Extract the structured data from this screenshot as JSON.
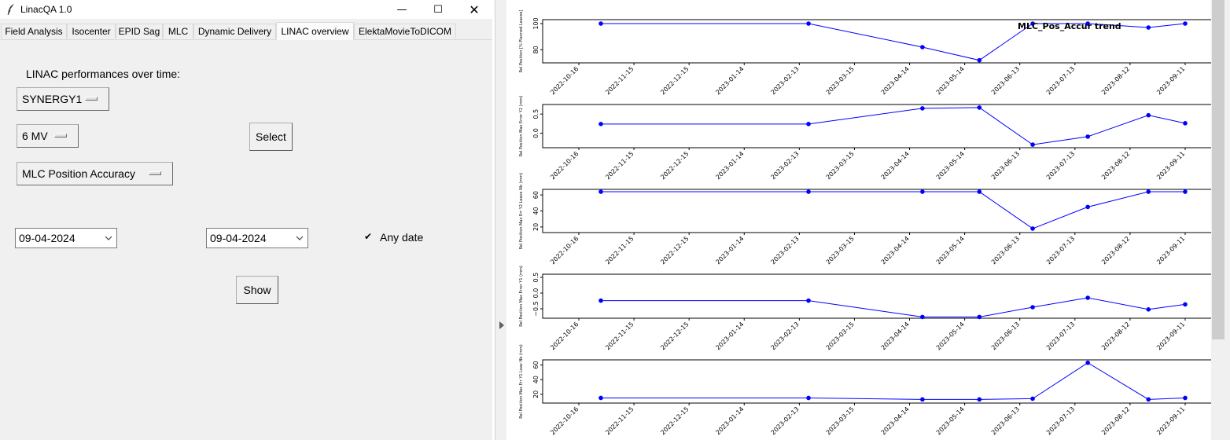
{
  "window": {
    "title": "LinacQA 1.0",
    "controls": {
      "minimize": "—",
      "maximize": "☐",
      "close": "✕"
    }
  },
  "tabs": [
    {
      "label": "Field Analysis"
    },
    {
      "label": "Isocenter"
    },
    {
      "label": "EPID Sag"
    },
    {
      "label": "MLC"
    },
    {
      "label": "Dynamic Delivery"
    },
    {
      "label": "LINAC overview"
    },
    {
      "label": "ElektaMovieToDICOM"
    }
  ],
  "form": {
    "heading": "LINAC performances over time:",
    "linac_value": "SYNERGY1",
    "energy_value": "6 MV",
    "test_value": "MLC Position Accuracy",
    "select_label": "Select",
    "start_date": "09-04-2024",
    "end_date": "09-04-2024",
    "any_date_label": "Any date",
    "any_date_checked": true,
    "show_label": "Show"
  },
  "chart_data": [
    {
      "type": "line",
      "title": "MLC_Pos_Accur trend",
      "ylabel": "Rel Position [% Planned Leaves]",
      "x": [
        "2022-10-28",
        "2023-02-18",
        "2023-04-21",
        "2023-05-22",
        "2023-06-20",
        "2023-07-20",
        "2023-08-22",
        "2023-09-11"
      ],
      "x_ticks": [
        "2022-10-16",
        "2022-11-15",
        "2022-12-15",
        "2023-01-14",
        "2023-02-13",
        "2023-03-15",
        "2023-04-14",
        "2023-05-14",
        "2023-06-13",
        "2023-07-13",
        "2023-08-12",
        "2023-09-11"
      ],
      "y": [
        100,
        100,
        82,
        72,
        100,
        100,
        97,
        100
      ],
      "y_ticks": [
        "80",
        "100"
      ],
      "ylim": [
        70,
        103
      ],
      "color": "#0000ff"
    },
    {
      "type": "line",
      "ylabel": "Rel Position Max Error Y2 (mm)",
      "x": [
        "2022-10-28",
        "2023-02-18",
        "2023-04-21",
        "2023-05-22",
        "2023-06-20",
        "2023-07-20",
        "2023-08-22",
        "2023-09-11"
      ],
      "x_ticks": [
        "2022-10-16",
        "2022-11-15",
        "2022-12-15",
        "2023-01-14",
        "2023-02-13",
        "2023-03-15",
        "2023-04-14",
        "2023-05-14",
        "2023-06-13",
        "2023-07-13",
        "2023-08-12",
        "2023-09-11"
      ],
      "y": [
        0.24,
        0.24,
        0.65,
        0.67,
        -0.3,
        -0.09,
        0.47,
        0.26
      ],
      "y_ticks": [
        "0.0",
        "0.5"
      ],
      "ylim": [
        -0.38,
        0.75
      ],
      "color": "#0000ff"
    },
    {
      "type": "line",
      "ylabel": "Rel Position Max Err Y2 Leave Nb (mm)",
      "x": [
        "2022-10-28",
        "2023-02-18",
        "2023-04-21",
        "2023-05-22",
        "2023-06-20",
        "2023-07-20",
        "2023-08-22",
        "2023-09-11"
      ],
      "x_ticks": [
        "2022-10-16",
        "2022-11-15",
        "2022-12-15",
        "2023-01-14",
        "2023-02-13",
        "2023-03-15",
        "2023-04-14",
        "2023-05-14",
        "2023-06-13",
        "2023-07-13",
        "2023-08-12",
        "2023-09-11"
      ],
      "y": [
        64,
        64,
        64,
        64,
        18,
        45,
        64,
        64
      ],
      "y_ticks": [
        "20",
        "40",
        "60"
      ],
      "ylim": [
        13,
        67
      ],
      "color": "#0000ff"
    },
    {
      "type": "line",
      "ylabel": "Rel Position Max Error Y1 (mm)",
      "x": [
        "2022-10-28",
        "2023-02-18",
        "2023-04-21",
        "2023-05-22",
        "2023-06-20",
        "2023-07-20",
        "2023-08-22",
        "2023-09-11"
      ],
      "x_ticks": [
        "2022-10-16",
        "2022-11-15",
        "2022-12-15",
        "2023-01-14",
        "2023-02-13",
        "2023-03-15",
        "2023-04-14",
        "2023-05-14",
        "2023-06-13",
        "2023-07-13",
        "2023-08-12",
        "2023-09-11"
      ],
      "y": [
        -0.24,
        -0.24,
        -0.76,
        -0.76,
        -0.45,
        -0.15,
        -0.52,
        -0.36
      ],
      "y_ticks": [
        "−0.5",
        "0.0",
        "0.5"
      ],
      "ylim": [
        -0.8,
        0.6
      ],
      "color": "#0000ff"
    },
    {
      "type": "line",
      "ylabel": "Rel Position Max Err Y1 Leav Nb (mm)",
      "x": [
        "2022-10-28",
        "2023-02-18",
        "2023-04-21",
        "2023-05-22",
        "2023-06-20",
        "2023-07-20",
        "2023-08-22",
        "2023-09-11"
      ],
      "x_ticks": [
        "2022-10-16",
        "2022-11-15",
        "2022-12-15",
        "2023-01-14",
        "2023-02-13",
        "2023-03-15",
        "2023-04-14",
        "2023-05-14",
        "2023-06-13",
        "2023-07-13",
        "2023-08-12",
        "2023-09-11"
      ],
      "y": [
        15,
        15,
        13,
        13,
        14,
        63,
        13,
        15
      ],
      "y_ticks": [
        "20",
        "40",
        "60"
      ],
      "ylim": [
        8,
        67
      ],
      "color": "#0000ff"
    }
  ]
}
